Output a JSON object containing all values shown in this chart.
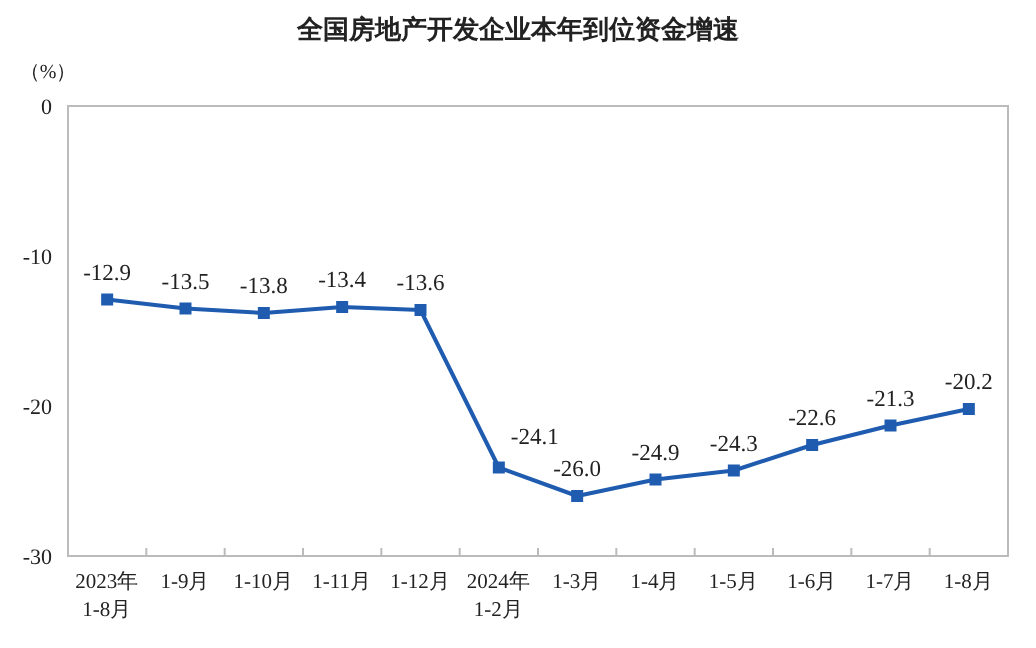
{
  "chart_data": {
    "type": "line",
    "title": "全国房地产开发企业本年到位资金增速",
    "ylabel": "（%）",
    "categories": [
      "2023年\n1-8月",
      "1-9月",
      "1-10月",
      "1-11月",
      "1-12月",
      "2024年\n1-2月",
      "1-3月",
      "1-4月",
      "1-5月",
      "1-6月",
      "1-7月",
      "1-8月"
    ],
    "series": [
      {
        "color": "#1f5cb0",
        "values": [
          -12.9,
          -13.5,
          -13.8,
          -13.4,
          -13.6,
          -24.1,
          -26.0,
          -24.9,
          -24.3,
          -22.6,
          -21.3,
          -20.2
        ]
      }
    ],
    "value_labels": [
      "-12.9",
      "-13.5",
      "-13.8",
      "-13.4",
      "-13.6",
      "-24.1",
      "-26.0",
      "-24.9",
      "-24.3",
      "-22.6",
      "-21.3",
      "-20.2"
    ],
    "ylim": [
      -30,
      0
    ],
    "yticks": [
      0,
      -10,
      -20,
      -30
    ],
    "marker": "square",
    "line_style": "solid"
  }
}
